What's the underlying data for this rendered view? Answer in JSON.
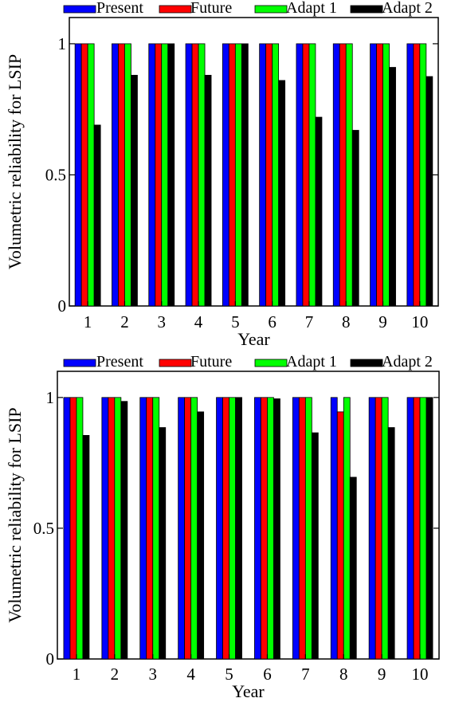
{
  "chart_data": [
    {
      "type": "bar",
      "xlabel": "Year",
      "ylabel": "Volumetric reliability for LSIP",
      "ylim": [
        0,
        1.1
      ],
      "yticks": [
        0,
        0.5,
        1
      ],
      "ytick_labels": [
        "0",
        "0.5",
        "1"
      ],
      "categories": [
        "1",
        "2",
        "3",
        "4",
        "5",
        "6",
        "7",
        "8",
        "9",
        "10"
      ],
      "legend": "top, above plot",
      "series": [
        {
          "name": "Present",
          "color": "#0000ff",
          "values": [
            1,
            1,
            1,
            1,
            1,
            1,
            1,
            1,
            1,
            1
          ]
        },
        {
          "name": "Future",
          "color": "#ff0000",
          "values": [
            1,
            1,
            1,
            1,
            1,
            1,
            1,
            1,
            1,
            1
          ]
        },
        {
          "name": "Adapt 1",
          "color": "#00ff00",
          "values": [
            1,
            1,
            1,
            1,
            1,
            1,
            1,
            1,
            1,
            1
          ]
        },
        {
          "name": "Adapt 2",
          "color": "#000000",
          "values": [
            0.69,
            0.88,
            1.0,
            0.88,
            1.0,
            0.86,
            0.72,
            0.67,
            0.91,
            0.875
          ]
        }
      ]
    },
    {
      "type": "bar",
      "xlabel": "Year",
      "ylabel": "Volumetric reliability for LSIP",
      "ylim": [
        0,
        1.1
      ],
      "yticks": [
        0,
        0.5,
        1
      ],
      "ytick_labels": [
        "0",
        "0.5",
        "1"
      ],
      "categories": [
        "1",
        "2",
        "3",
        "4",
        "5",
        "6",
        "7",
        "8",
        "9",
        "10"
      ],
      "legend": "top, above plot",
      "series": [
        {
          "name": "Present",
          "color": "#0000ff",
          "values": [
            1,
            1,
            1,
            1,
            1,
            1,
            1,
            1,
            1,
            1
          ]
        },
        {
          "name": "Future",
          "color": "#ff0000",
          "values": [
            1,
            1,
            1,
            1,
            1,
            1,
            1,
            0.945,
            1,
            1
          ]
        },
        {
          "name": "Adapt 1",
          "color": "#00ff00",
          "values": [
            1,
            1,
            1,
            1,
            1,
            1,
            1,
            1,
            1,
            1
          ]
        },
        {
          "name": "Adapt 2",
          "color": "#000000",
          "values": [
            0.855,
            0.985,
            0.885,
            0.945,
            1.0,
            0.995,
            0.865,
            0.695,
            0.885,
            1.0
          ]
        }
      ]
    }
  ]
}
